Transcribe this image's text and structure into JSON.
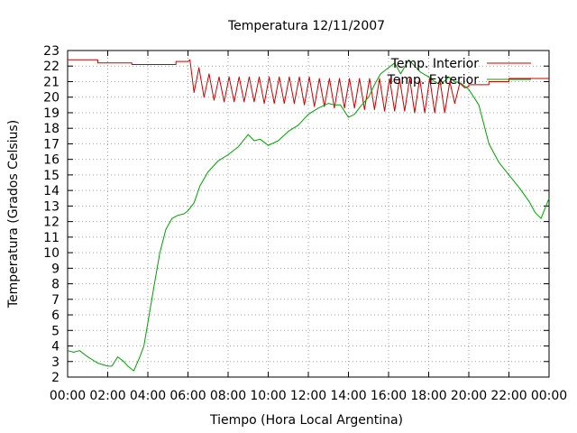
{
  "chart_data": {
    "type": "line",
    "title": "Temperatura 12/11/2007",
    "xlabel": "Tiempo (Hora Local Argentina)",
    "ylabel": "Temperatura (Grados Celsius)",
    "x_unit": "hours",
    "xlim": [
      0,
      24
    ],
    "ylim": [
      2,
      23
    ],
    "x_ticks": [
      0,
      2,
      4,
      6,
      8,
      10,
      12,
      14,
      16,
      18,
      20,
      22,
      24
    ],
    "x_tick_labels": [
      "00:00",
      "02:00",
      "04:00",
      "06:00",
      "08:00",
      "10:00",
      "12:00",
      "14:00",
      "16:00",
      "18:00",
      "20:00",
      "22:00",
      "00:00"
    ],
    "y_ticks": [
      2,
      3,
      4,
      5,
      6,
      7,
      8,
      9,
      10,
      11,
      12,
      13,
      14,
      15,
      16,
      17,
      18,
      19,
      20,
      21,
      22,
      23
    ],
    "y_tick_labels": [
      "2",
      "3",
      "4",
      "5",
      "6",
      "7",
      "8",
      "9",
      "10",
      "11",
      "12",
      "13",
      "14",
      "15",
      "16",
      "17",
      "18",
      "19",
      "20",
      "21",
      "22",
      "23"
    ],
    "grid": true,
    "legend_position": "top-right",
    "series": [
      {
        "name": "Temp. Interior",
        "color": "#cc0000",
        "x": [
          0.0,
          1.5,
          1.5,
          3.2,
          3.2,
          5.4,
          5.4,
          6.0,
          6.1,
          6.3,
          6.55,
          6.8,
          7.05,
          7.3,
          7.55,
          7.8,
          8.05,
          8.3,
          8.55,
          8.8,
          9.05,
          9.3,
          9.55,
          9.8,
          10.05,
          10.3,
          10.55,
          10.8,
          11.05,
          11.3,
          11.55,
          11.8,
          12.05,
          12.3,
          12.55,
          12.8,
          13.05,
          13.3,
          13.55,
          13.8,
          14.05,
          14.3,
          14.55,
          14.8,
          15.05,
          15.3,
          15.55,
          15.8,
          16.05,
          16.3,
          16.55,
          16.8,
          17.05,
          17.3,
          17.55,
          17.8,
          18.05,
          18.3,
          18.55,
          18.8,
          19.05,
          19.3,
          19.55,
          19.8,
          20.0,
          20.0,
          21.0,
          21.0,
          22.0,
          22.0,
          24.0
        ],
        "y": [
          22.4,
          22.4,
          22.2,
          22.2,
          22.1,
          22.1,
          22.3,
          22.3,
          22.4,
          20.3,
          21.9,
          20.0,
          21.5,
          19.8,
          21.3,
          19.7,
          21.3,
          19.7,
          21.3,
          19.7,
          21.3,
          19.7,
          21.3,
          19.6,
          21.3,
          19.6,
          21.3,
          19.6,
          21.3,
          19.6,
          21.3,
          19.5,
          21.3,
          19.4,
          21.2,
          19.4,
          21.2,
          19.3,
          21.2,
          19.3,
          21.2,
          19.3,
          21.2,
          19.2,
          21.2,
          19.2,
          21.2,
          19.1,
          21.2,
          19.1,
          21.2,
          19.1,
          21.2,
          19.0,
          21.2,
          19.0,
          21.2,
          19.0,
          21.2,
          19.0,
          21.0,
          19.6,
          20.9,
          20.6,
          20.7,
          20.8,
          20.8,
          21.0,
          21.0,
          21.2,
          21.2
        ]
      },
      {
        "name": "Temp. Exterior",
        "color": "#00a000",
        "x": [
          0.0,
          0.3,
          0.6,
          1.0,
          1.5,
          2.0,
          2.2,
          2.5,
          2.8,
          3.0,
          3.3,
          3.6,
          3.8,
          4.0,
          4.3,
          4.6,
          4.9,
          5.2,
          5.5,
          5.8,
          6.0,
          6.3,
          6.6,
          7.0,
          7.5,
          8.0,
          8.5,
          9.0,
          9.3,
          9.6,
          10.0,
          10.5,
          11.0,
          11.5,
          12.0,
          12.5,
          13.0,
          13.3,
          13.6,
          14.0,
          14.3,
          14.6,
          15.0,
          15.3,
          15.6,
          16.0,
          16.3,
          16.6,
          17.0,
          17.3,
          17.6,
          18.0,
          18.3,
          18.6,
          19.0,
          19.3,
          19.6,
          20.0,
          20.5,
          21.0,
          21.5,
          22.0,
          22.5,
          23.0,
          23.3,
          23.6,
          24.0
        ],
        "y": [
          3.7,
          3.6,
          3.7,
          3.3,
          2.9,
          2.7,
          2.7,
          3.3,
          3.0,
          2.7,
          2.4,
          3.3,
          4.0,
          5.5,
          7.8,
          10.0,
          11.5,
          12.2,
          12.4,
          12.5,
          12.7,
          13.2,
          14.3,
          15.2,
          15.9,
          16.3,
          16.8,
          17.6,
          17.2,
          17.3,
          16.9,
          17.2,
          17.8,
          18.2,
          18.9,
          19.3,
          19.6,
          19.5,
          19.5,
          18.7,
          18.9,
          19.4,
          20.0,
          20.8,
          21.5,
          21.9,
          22.2,
          21.5,
          22.4,
          22.0,
          21.6,
          21.3,
          21.0,
          20.8,
          21.3,
          21.0,
          20.9,
          20.5,
          19.5,
          17.0,
          15.8,
          15.0,
          14.2,
          13.3,
          12.6,
          12.2,
          13.5
        ]
      }
    ]
  }
}
